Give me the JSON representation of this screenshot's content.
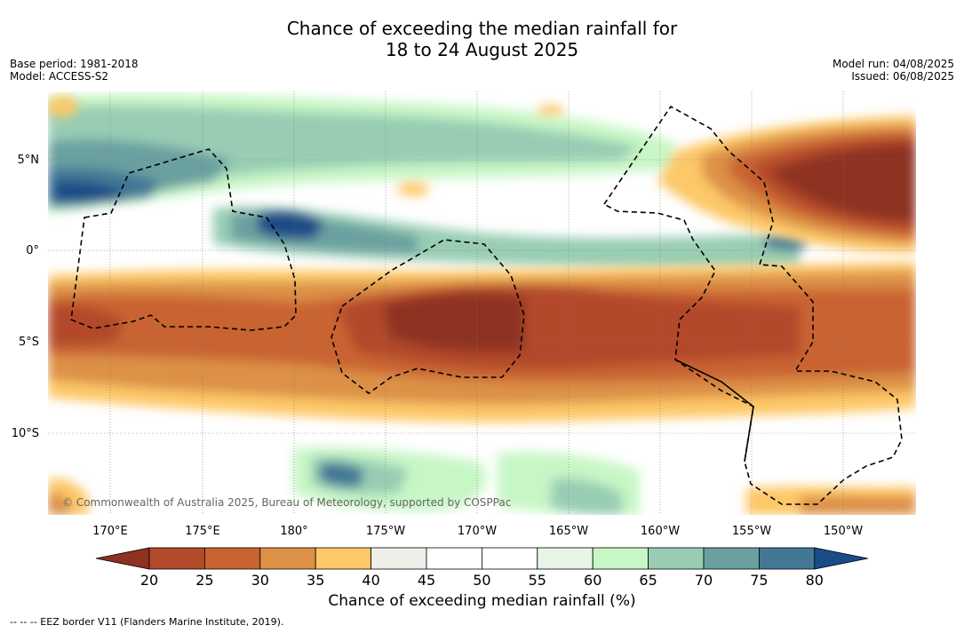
{
  "title": {
    "line1": "Chance of exceeding the median rainfall for",
    "line2": "18 to 24 August 2025"
  },
  "meta_left": {
    "base_period": "Base period: 1981-2018",
    "model": "Model: ACCESS-S2"
  },
  "meta_right": {
    "model_run": "Model run: 04/08/2025",
    "issued": "Issued: 06/08/2025"
  },
  "map": {
    "lat_labels": [
      "5°N",
      "0°",
      "5°S",
      "10°S"
    ],
    "lon_labels": [
      "170°E",
      "175°E",
      "180°",
      "175°W",
      "170°W",
      "165°W",
      "160°W",
      "155°W",
      "150°W"
    ],
    "copyright": "© Commonwealth of Australia 2025, Bureau of Meteorology, supported by COSPPac"
  },
  "colorbar": {
    "label": "Chance of exceeding median rainfall (%)",
    "ticks": [
      "20",
      "25",
      "30",
      "35",
      "40",
      "45",
      "50",
      "55",
      "60",
      "65",
      "70",
      "75",
      "80"
    ],
    "colors": [
      "#8e3120",
      "#b34a2b",
      "#c96331",
      "#dc9146",
      "#fdc868",
      "#efeee8",
      "#ffffff",
      "#ffffff",
      "#e7f4e6",
      "#c8f7c6",
      "#98cdb4",
      "#6ba0a0",
      "#427896",
      "#1b4c87"
    ]
  },
  "footer": "--  --  -- EEZ border V11 (Flanders Marine Institute, 2019)."
}
